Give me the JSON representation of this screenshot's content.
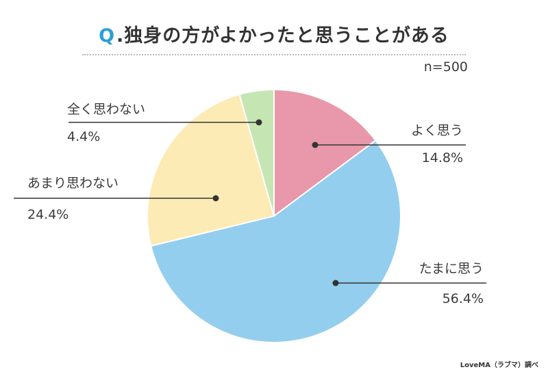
{
  "header": {
    "q_prefix": "Q",
    "q_dot": ".",
    "title": "独身の方がよかったと思うことがある",
    "sample_size": "n=500"
  },
  "footer": {
    "credit": "LoveMA（ラブマ）調べ"
  },
  "colors": {
    "accent": "#2b9fd6",
    "leader": "#333333"
  },
  "chart_data": {
    "type": "pie",
    "title": "独身の方がよかったと思うことがある",
    "start_angle_deg": 0,
    "direction": "clockwise",
    "slices": [
      {
        "label": "よく思う",
        "value": 14.8,
        "display": "14.8%",
        "color": "#e898aa"
      },
      {
        "label": "たまに思う",
        "value": 56.4,
        "display": "56.4%",
        "color": "#93ceee"
      },
      {
        "label": "あまり思わない",
        "value": 24.4,
        "display": "24.4%",
        "color": "#fdebb5"
      },
      {
        "label": "全く思わない",
        "value": 4.4,
        "display": "4.4%",
        "color": "#c5e6b3"
      }
    ]
  }
}
